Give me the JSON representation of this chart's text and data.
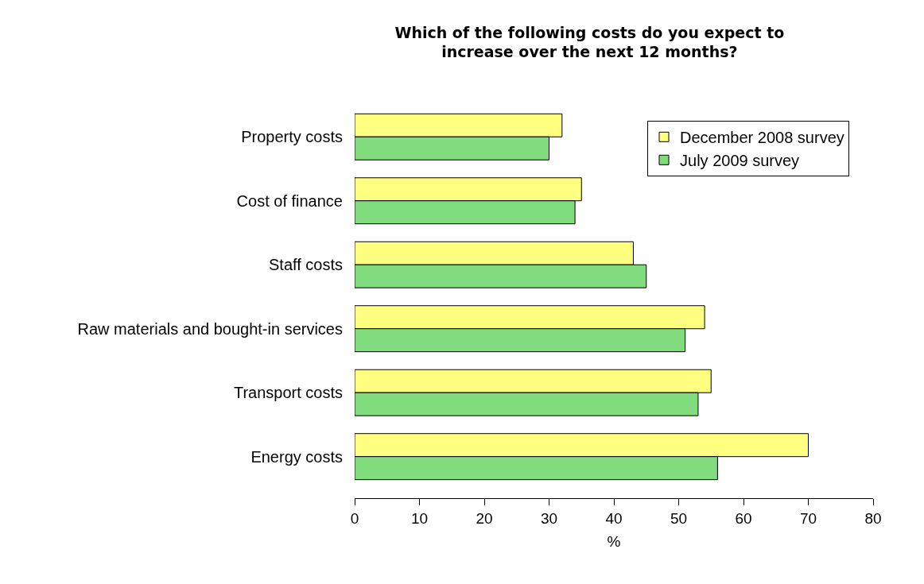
{
  "chart_data": {
    "type": "bar",
    "orientation": "horizontal",
    "title": "Which of the following costs do you expect to\nincrease over the next 12 months?",
    "xlabel": "%",
    "categories": [
      "Property costs",
      "Cost of finance",
      "Staff costs",
      "Raw materials and bought-in services",
      "Transport costs",
      "Energy costs"
    ],
    "series": [
      {
        "name": "December 2008 survey",
        "color": "#ffff80",
        "values": [
          32,
          35,
          43,
          54,
          55,
          70
        ]
      },
      {
        "name": "July 2009 survey",
        "color": "#80dc7c",
        "values": [
          30,
          34,
          45,
          51,
          53,
          56
        ]
      }
    ],
    "xlim": [
      0,
      80
    ],
    "xticks": [
      0,
      10,
      20,
      30,
      40,
      50,
      60,
      70,
      80
    ],
    "grid": false,
    "legend": "top right"
  }
}
